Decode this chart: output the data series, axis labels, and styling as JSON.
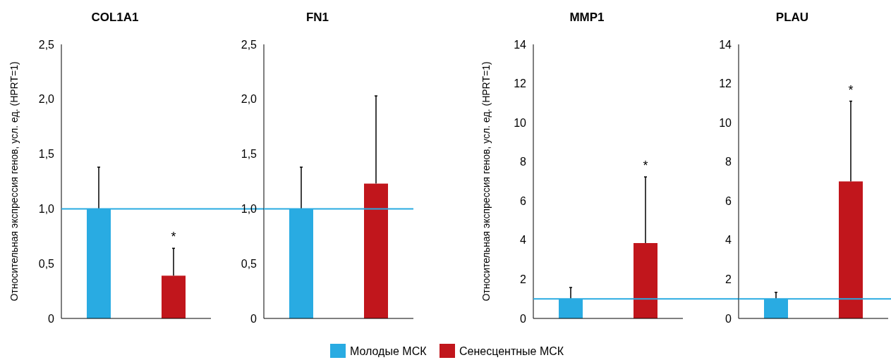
{
  "chart_data": [
    {
      "type": "bar",
      "title": "COL1A1",
      "ylabel": "Относительная экспрессия генов, усл. ед. (HPRT=1)",
      "categories": [
        null
      ],
      "series": [
        {
          "name": "Молодые МСК",
          "color": "#29abe2",
          "values": [
            1.0
          ],
          "errors": [
            [
              1.0,
              1.38
            ]
          ]
        },
        {
          "name": "Сенесцентные МСК",
          "color": "#c1161c",
          "values": [
            0.39
          ],
          "errors": [
            [
              0.39,
              0.64
            ]
          ]
        }
      ],
      "ylim": [
        0,
        2.5
      ],
      "yticks": [
        0,
        {
          "value": 0.5,
          "label": "0,5"
        },
        {
          "value": 1,
          "label": "1,0"
        },
        {
          "value": 1.5,
          "label": "1,5"
        },
        {
          "value": 2,
          "label": "2,0"
        },
        {
          "value": 2.5,
          "label": "2,5"
        }
      ],
      "ref_lines": [
        {
          "axis": "y",
          "value": 1,
          "color": "#29abe2"
        }
      ],
      "annotations": [
        {
          "text": "*",
          "y": 0.64
        }
      ],
      "legend": "bottom",
      "grid": false
    },
    {
      "type": "bar",
      "title": "FN1",
      "categories": [
        null
      ],
      "series": [
        {
          "color": "#29abe2",
          "values": [
            1.0
          ],
          "errors": [
            [
              1.0,
              1.38
            ]
          ]
        },
        {
          "color": "#c1161c",
          "values": [
            1.23
          ],
          "errors": [
            [
              1.23,
              2.03
            ]
          ]
        }
      ],
      "ylim": [
        0,
        2.5
      ],
      "yticks": [
        0,
        {
          "value": 0.5,
          "label": "0,5"
        },
        {
          "value": 1,
          "label": "1,0"
        },
        {
          "value": 1.5,
          "label": "1,5"
        },
        {
          "value": 2,
          "label": "2,0"
        },
        {
          "value": 2.5,
          "label": "2,5"
        }
      ],
      "ref_lines": [
        {
          "axis": "y",
          "value": 1,
          "color": "#29abe2"
        }
      ],
      "grid": false
    },
    {
      "type": "bar",
      "title": "MMP1",
      "ylabel": "Относительная экспрессия генов, усл. ед. (HPRT=1)",
      "categories": [
        null
      ],
      "series": [
        {
          "color": "#29abe2",
          "values": [
            1.0
          ],
          "errors": [
            [
              1.0,
              1.58
            ]
          ]
        },
        {
          "color": "#c1161c",
          "values": [
            3.85
          ],
          "errors": [
            [
              3.85,
              7.23
            ]
          ]
        }
      ],
      "ylim": [
        0,
        14
      ],
      "yticks": [
        0,
        2,
        4,
        6,
        8,
        10,
        12,
        14
      ],
      "ref_lines": [
        {
          "axis": "y",
          "value": 1,
          "color": "#29abe2"
        }
      ],
      "annotations": [
        {
          "text": "*",
          "y": 7.23
        }
      ],
      "grid": false
    },
    {
      "type": "bar",
      "title": "PLAU",
      "categories": [
        null
      ],
      "series": [
        {
          "color": "#29abe2",
          "values": [
            1.0
          ],
          "errors": [
            [
              1.0,
              1.33
            ]
          ]
        },
        {
          "color": "#c1161c",
          "values": [
            7.0
          ],
          "errors": [
            [
              7.0,
              11.1
            ]
          ]
        }
      ],
      "ylim": [
        0,
        14
      ],
      "yticks": [
        0,
        2,
        4,
        6,
        8,
        10,
        12,
        14
      ],
      "ref_lines": [
        {
          "axis": "y",
          "value": 1,
          "color": "#29abe2"
        }
      ],
      "annotations": [
        {
          "text": "*",
          "y": 11.1
        }
      ],
      "grid": false
    }
  ]
}
